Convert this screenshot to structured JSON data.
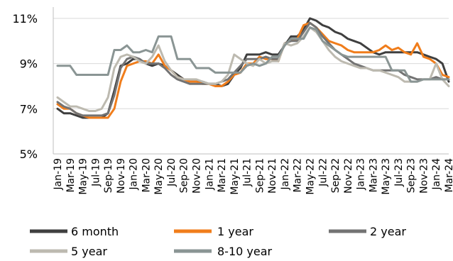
{
  "chart_data": {
    "type": "line",
    "title": "",
    "xlabel": "",
    "ylabel": "",
    "x": [
      "Jan-19",
      "Feb-19",
      "Mar-19",
      "Apr-19",
      "May-19",
      "Jun-19",
      "Jul-19",
      "Aug-19",
      "Sep-19",
      "Oct-19",
      "Nov-19",
      "Dec-19",
      "Jan-20",
      "Feb-20",
      "Mar-20",
      "Apr-20",
      "May-20",
      "Jun-20",
      "Jul-20",
      "Aug-20",
      "Sep-20",
      "Oct-20",
      "Nov-20",
      "Dec-20",
      "Jan-21",
      "Feb-21",
      "Mar-21",
      "Apr-21",
      "May-21",
      "Jun-21",
      "Jul-21",
      "Aug-21",
      "Sep-21",
      "Oct-21",
      "Nov-21",
      "Dec-21",
      "Jan-22",
      "Feb-22",
      "Mar-22",
      "Apr-22",
      "May-22",
      "Jun-22",
      "Jul-22",
      "Aug-22",
      "Sep-22",
      "Oct-22",
      "Nov-22",
      "Dec-22",
      "Jan-23",
      "Feb-23",
      "Mar-23",
      "Apr-23",
      "May-23",
      "Jun-23",
      "Jul-23",
      "Aug-23",
      "Sep-23",
      "Oct-23",
      "Nov-23",
      "Dec-23",
      "Jan-24",
      "Feb-24",
      "Mar-24"
    ],
    "xtick_labels": [
      "Jan-19",
      "Mar-19",
      "May-19",
      "Jul-19",
      "Sep-19",
      "Nov-19",
      "Jan-20",
      "Mar-20",
      "May-20",
      "Jul-20",
      "Sep-20",
      "Nov-20",
      "Jan-21",
      "Mar-21",
      "May-21",
      "Jul-21",
      "Sep-21",
      "Nov-21",
      "Jan-22",
      "Mar-22",
      "May-22",
      "Jul-22",
      "Sep-22",
      "Nov-22",
      "Jan-23",
      "Mar-23",
      "May-23",
      "Jul-23",
      "Sep-23",
      "Nov-23",
      "Jan-24",
      "Mar-24"
    ],
    "ylim": [
      5,
      11.5
    ],
    "yticks": [
      5,
      7,
      9,
      11
    ],
    "ytick_labels": [
      "5%",
      "7%",
      "9%",
      "11%"
    ],
    "grid": "horizontal",
    "legend_position": "bottom",
    "series": [
      {
        "name": "6 month",
        "color": "#3f3f3f",
        "values": [
          7.0,
          6.8,
          6.8,
          6.7,
          6.6,
          6.6,
          6.6,
          6.6,
          6.8,
          7.8,
          8.9,
          9.0,
          9.2,
          9.2,
          9.0,
          8.9,
          9.0,
          8.9,
          8.7,
          8.5,
          8.3,
          8.2,
          8.2,
          8.2,
          8.1,
          8.1,
          8.0,
          8.1,
          8.5,
          8.8,
          9.4,
          9.4,
          9.4,
          9.5,
          9.4,
          9.4,
          9.8,
          10.2,
          10.2,
          10.5,
          11.0,
          10.9,
          10.7,
          10.6,
          10.4,
          10.3,
          10.1,
          10.0,
          9.9,
          9.7,
          9.5,
          9.4,
          9.5,
          9.5,
          9.5,
          9.5,
          9.5,
          9.5,
          9.4,
          9.3,
          9.2,
          9.0,
          8.2
        ]
      },
      {
        "name": "1 year",
        "color": "#f07d1b",
        "values": [
          7.2,
          7.0,
          7.0,
          6.8,
          6.7,
          6.6,
          6.6,
          6.6,
          6.6,
          7.0,
          8.2,
          8.9,
          9.0,
          9.1,
          9.1,
          9.0,
          9.4,
          8.9,
          8.7,
          8.4,
          8.3,
          8.2,
          8.2,
          8.1,
          8.1,
          8.0,
          8.0,
          8.2,
          8.5,
          8.6,
          9.0,
          9.0,
          9.3,
          9.2,
          9.2,
          9.1,
          9.9,
          10.0,
          10.1,
          10.7,
          10.8,
          10.6,
          10.3,
          10.0,
          9.9,
          9.8,
          9.6,
          9.5,
          9.5,
          9.5,
          9.5,
          9.6,
          9.8,
          9.6,
          9.7,
          9.5,
          9.4,
          9.9,
          9.3,
          9.2,
          9.0,
          8.5,
          8.4
        ]
      },
      {
        "name": "2 year",
        "color": "#737373",
        "values": [
          7.3,
          7.1,
          7.0,
          6.8,
          6.7,
          6.7,
          6.7,
          6.7,
          6.8,
          7.6,
          8.8,
          9.2,
          9.3,
          9.2,
          9.0,
          9.0,
          9.0,
          8.8,
          8.5,
          8.3,
          8.2,
          8.1,
          8.1,
          8.1,
          8.1,
          8.1,
          8.2,
          8.3,
          8.6,
          8.9,
          9.2,
          9.2,
          9.2,
          9.3,
          9.2,
          9.2,
          9.9,
          10.0,
          10.0,
          10.4,
          10.8,
          10.6,
          10.2,
          9.9,
          9.6,
          9.4,
          9.2,
          9.0,
          8.9,
          8.8,
          8.7,
          8.7,
          8.7,
          8.7,
          8.7,
          8.5,
          8.4,
          8.3,
          8.3,
          8.3,
          8.4,
          8.3,
          8.3
        ]
      },
      {
        "name": "5 year",
        "color": "#bdbab0",
        "values": [
          7.5,
          7.3,
          7.1,
          7.1,
          7.0,
          6.9,
          6.9,
          7.0,
          7.5,
          8.8,
          9.3,
          9.4,
          9.3,
          9.1,
          9.0,
          9.3,
          9.8,
          9.1,
          8.7,
          8.4,
          8.3,
          8.3,
          8.3,
          8.2,
          8.1,
          8.1,
          8.2,
          8.5,
          9.4,
          9.2,
          9.0,
          8.9,
          9.2,
          9.0,
          9.1,
          9.1,
          9.9,
          9.8,
          9.9,
          10.2,
          10.6,
          10.4,
          10.0,
          9.6,
          9.3,
          9.1,
          9.0,
          8.9,
          8.8,
          8.8,
          8.7,
          8.7,
          8.6,
          8.5,
          8.4,
          8.2,
          8.2,
          8.2,
          8.3,
          8.3,
          9.0,
          8.3,
          8.0
        ]
      },
      {
        "name": "8-10 year",
        "color": "#8a9594",
        "values": [
          8.9,
          8.9,
          8.9,
          8.5,
          8.5,
          8.5,
          8.5,
          8.5,
          8.5,
          9.6,
          9.6,
          9.8,
          9.5,
          9.5,
          9.6,
          9.5,
          10.2,
          10.2,
          10.2,
          9.2,
          9.2,
          9.2,
          8.8,
          8.8,
          8.8,
          8.6,
          8.6,
          8.6,
          8.6,
          8.6,
          8.9,
          9.0,
          8.9,
          9.0,
          9.3,
          9.3,
          9.8,
          10.1,
          10.1,
          10.1,
          10.6,
          10.5,
          10.0,
          9.8,
          9.6,
          9.4,
          9.3,
          9.3,
          9.3,
          9.3,
          9.3,
          9.3,
          9.3,
          8.7,
          8.7,
          8.7,
          8.2,
          8.2,
          8.3,
          8.3,
          8.3,
          8.3,
          8.3
        ]
      }
    ]
  }
}
